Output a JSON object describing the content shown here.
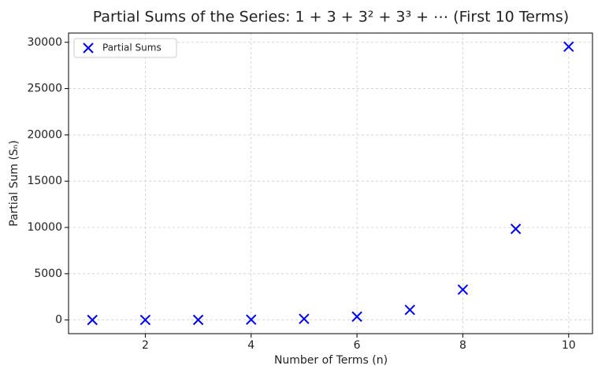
{
  "chart_data": {
    "type": "scatter",
    "title": "Partial Sums of the Series: 1 + 3 + 3² + 3³ + ⋯ (First 10 Terms)",
    "x_label": "Number of Terms (n)",
    "y_label": "Partial Sum (Sₙ)",
    "series": [
      {
        "name": "Partial Sums",
        "color": "#0000ff",
        "x": [
          1,
          2,
          3,
          4,
          5,
          6,
          7,
          8,
          9,
          10
        ],
        "values": [
          1,
          4,
          13,
          40,
          121,
          364,
          1093,
          3280,
          9841,
          29524
        ]
      }
    ],
    "xlim": [
      0.55,
      10.45
    ],
    "ylim": [
      -1475,
      30999
    ],
    "xticks": [
      2,
      4,
      6,
      8,
      10
    ],
    "yticks": [
      0,
      5000,
      10000,
      15000,
      20000,
      25000,
      30000
    ],
    "grid": true,
    "legend": "upper-left"
  }
}
